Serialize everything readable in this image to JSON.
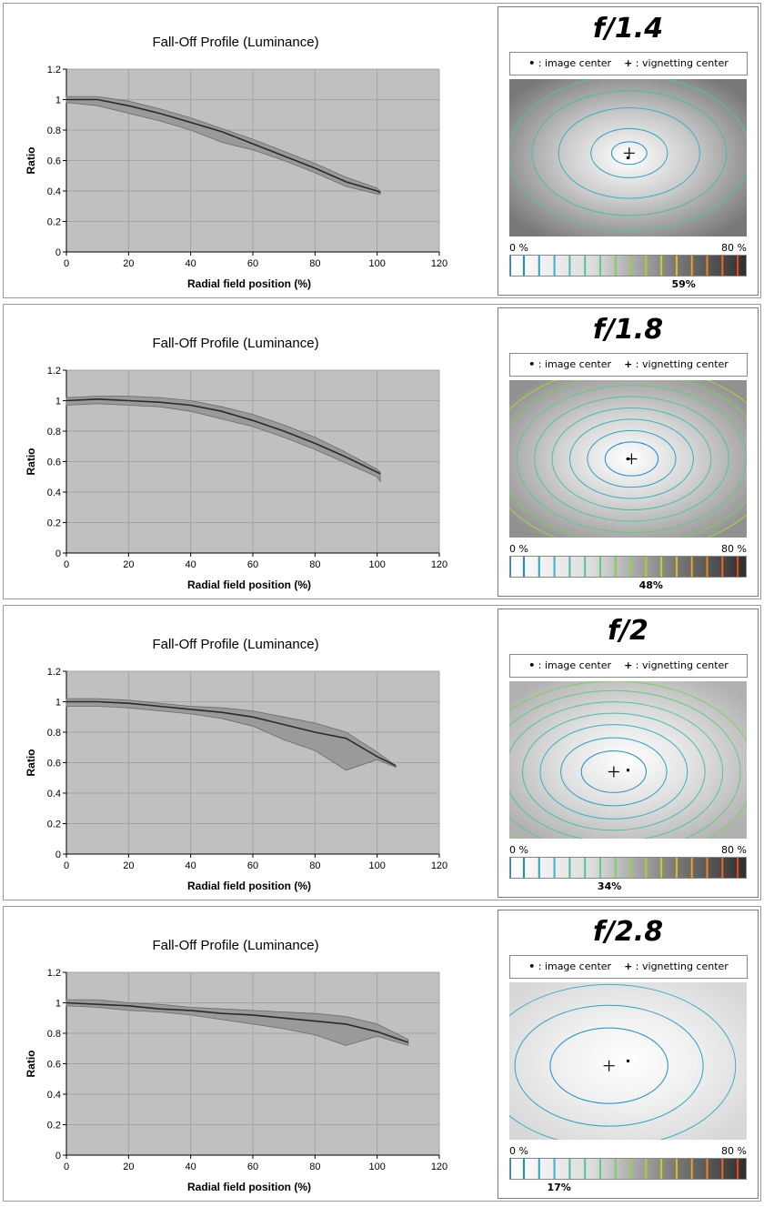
{
  "legend": {
    "dot": "•",
    "image_center": ": image center",
    "plus": "+",
    "vignetting_center": ": vignetting center"
  },
  "scale_labels": {
    "min": "0 %",
    "max": "80 %"
  },
  "scale_colors": [
    "#1b8ccc",
    "#2aa2c4",
    "#38b2c0",
    "#48bcac",
    "#52c49a",
    "#5ecb7e",
    "#7bcf5a",
    "#8ed244",
    "#a8d42e",
    "#c8d024",
    "#e0c020",
    "#eca41e",
    "#ef861c",
    "#ee6a1a",
    "#ea4a18",
    "#e02a16"
  ],
  "chart_data": [
    {
      "type": "line",
      "title": "Fall-Off Profile (Luminance)",
      "xlabel": "Radial field position (%)",
      "ylabel": "Ratio",
      "xlim": [
        0,
        120
      ],
      "ylim": [
        0,
        1.2
      ],
      "xticks": [
        "0",
        "20",
        "40",
        "60",
        "80",
        "100",
        "120"
      ],
      "yticks": [
        "0",
        "0.2",
        "0.4",
        "0.6",
        "0.8",
        "1",
        "1.2"
      ],
      "grid": true,
      "x": [
        0,
        10,
        20,
        30,
        40,
        50,
        60,
        70,
        80,
        90,
        100,
        101
      ],
      "y": [
        1.0,
        1.0,
        0.96,
        0.91,
        0.85,
        0.79,
        0.71,
        0.63,
        0.55,
        0.46,
        0.4,
        0.39
      ],
      "band_upper": [
        1.02,
        1.02,
        0.99,
        0.94,
        0.88,
        0.81,
        0.74,
        0.66,
        0.58,
        0.49,
        0.42,
        0.4
      ],
      "band_lower": [
        0.98,
        0.96,
        0.91,
        0.86,
        0.8,
        0.72,
        0.67,
        0.6,
        0.52,
        0.43,
        0.38,
        0.38
      ],
      "aperture": "f/1.4",
      "vignetting": "59%",
      "vignetting_value": 0.59,
      "image_center": [
        0.5,
        0.5
      ],
      "vignetting_center": [
        0.505,
        0.47
      ],
      "contours": [
        0.12,
        0.26,
        0.48,
        0.66,
        0.82
      ]
    },
    {
      "type": "line",
      "title": "Fall-Off Profile (Luminance)",
      "xlabel": "Radial field position (%)",
      "ylabel": "Ratio",
      "xlim": [
        0,
        120
      ],
      "ylim": [
        0,
        1.2
      ],
      "xticks": [
        "0",
        "20",
        "40",
        "60",
        "80",
        "100",
        "120"
      ],
      "yticks": [
        "0",
        "0.2",
        "0.4",
        "0.6",
        "0.8",
        "1",
        "1.2"
      ],
      "grid": true,
      "x": [
        0,
        10,
        20,
        30,
        40,
        50,
        60,
        70,
        80,
        90,
        100,
        101
      ],
      "y": [
        1.0,
        1.01,
        1.0,
        0.99,
        0.97,
        0.93,
        0.87,
        0.8,
        0.72,
        0.63,
        0.53,
        0.52
      ],
      "band_upper": [
        1.02,
        1.03,
        1.03,
        1.02,
        1.0,
        0.96,
        0.91,
        0.84,
        0.76,
        0.66,
        0.55,
        0.53
      ],
      "band_lower": [
        0.97,
        0.98,
        0.97,
        0.96,
        0.93,
        0.88,
        0.83,
        0.76,
        0.68,
        0.59,
        0.5,
        0.47
      ],
      "aperture": "f/1.8",
      "vignetting": "48%",
      "vignetting_value": 0.48,
      "image_center": [
        0.5,
        0.5
      ],
      "vignetting_center": [
        0.515,
        0.5
      ],
      "contours": [
        0.18,
        0.3,
        0.42,
        0.54,
        0.66,
        0.78,
        0.9,
        0.98
      ]
    },
    {
      "type": "line",
      "title": "Fall-Off Profile (Luminance)",
      "xlabel": "Radial field position (%)",
      "ylabel": "Ratio",
      "xlim": [
        0,
        120
      ],
      "ylim": [
        0,
        1.2
      ],
      "xticks": [
        "0",
        "20",
        "40",
        "60",
        "80",
        "100",
        "120"
      ],
      "yticks": [
        "0",
        "0.2",
        "0.4",
        "0.6",
        "0.8",
        "1",
        "1.2"
      ],
      "grid": true,
      "x": [
        0,
        10,
        20,
        30,
        40,
        50,
        60,
        70,
        80,
        90,
        100,
        106
      ],
      "y": [
        1.0,
        1.0,
        0.99,
        0.97,
        0.95,
        0.93,
        0.9,
        0.85,
        0.8,
        0.76,
        0.64,
        0.58
      ],
      "band_upper": [
        1.02,
        1.02,
        1.01,
        0.99,
        0.97,
        0.96,
        0.94,
        0.9,
        0.86,
        0.8,
        0.67,
        0.58
      ],
      "band_lower": [
        0.97,
        0.97,
        0.96,
        0.94,
        0.92,
        0.89,
        0.84,
        0.75,
        0.68,
        0.55,
        0.62,
        0.57
      ],
      "aperture": "f/2",
      "vignetting": "34%",
      "vignetting_value": 0.34,
      "image_center": [
        0.5,
        0.565
      ],
      "vignetting_center": [
        0.44,
        0.575
      ],
      "contours": [
        0.22,
        0.36,
        0.5,
        0.62,
        0.74,
        0.86,
        0.96
      ]
    },
    {
      "type": "line",
      "title": "Fall-Off Profile (Luminance)",
      "xlabel": "Radial field position (%)",
      "ylabel": "Ratio",
      "xlim": [
        0,
        120
      ],
      "ylim": [
        0,
        1.2
      ],
      "xticks": [
        "0",
        "20",
        "40",
        "60",
        "80",
        "100",
        "120"
      ],
      "yticks": [
        "0",
        "0.2",
        "0.4",
        "0.6",
        "0.8",
        "1",
        "1.2"
      ],
      "grid": true,
      "x": [
        0,
        10,
        20,
        30,
        40,
        50,
        60,
        70,
        80,
        90,
        100,
        110
      ],
      "y": [
        1.0,
        0.99,
        0.98,
        0.96,
        0.95,
        0.93,
        0.92,
        0.9,
        0.88,
        0.86,
        0.81,
        0.74
      ],
      "band_upper": [
        1.02,
        1.02,
        1.0,
        0.99,
        0.97,
        0.96,
        0.95,
        0.94,
        0.93,
        0.91,
        0.86,
        0.76
      ],
      "band_lower": [
        0.98,
        0.97,
        0.95,
        0.94,
        0.92,
        0.89,
        0.86,
        0.83,
        0.79,
        0.72,
        0.78,
        0.72
      ],
      "aperture": "f/2.8",
      "vignetting": "17%",
      "vignetting_value": 0.17,
      "image_center": [
        0.5,
        0.5
      ],
      "vignetting_center": [
        0.42,
        0.53
      ],
      "contours": [
        0.4,
        0.64,
        0.86
      ]
    }
  ]
}
